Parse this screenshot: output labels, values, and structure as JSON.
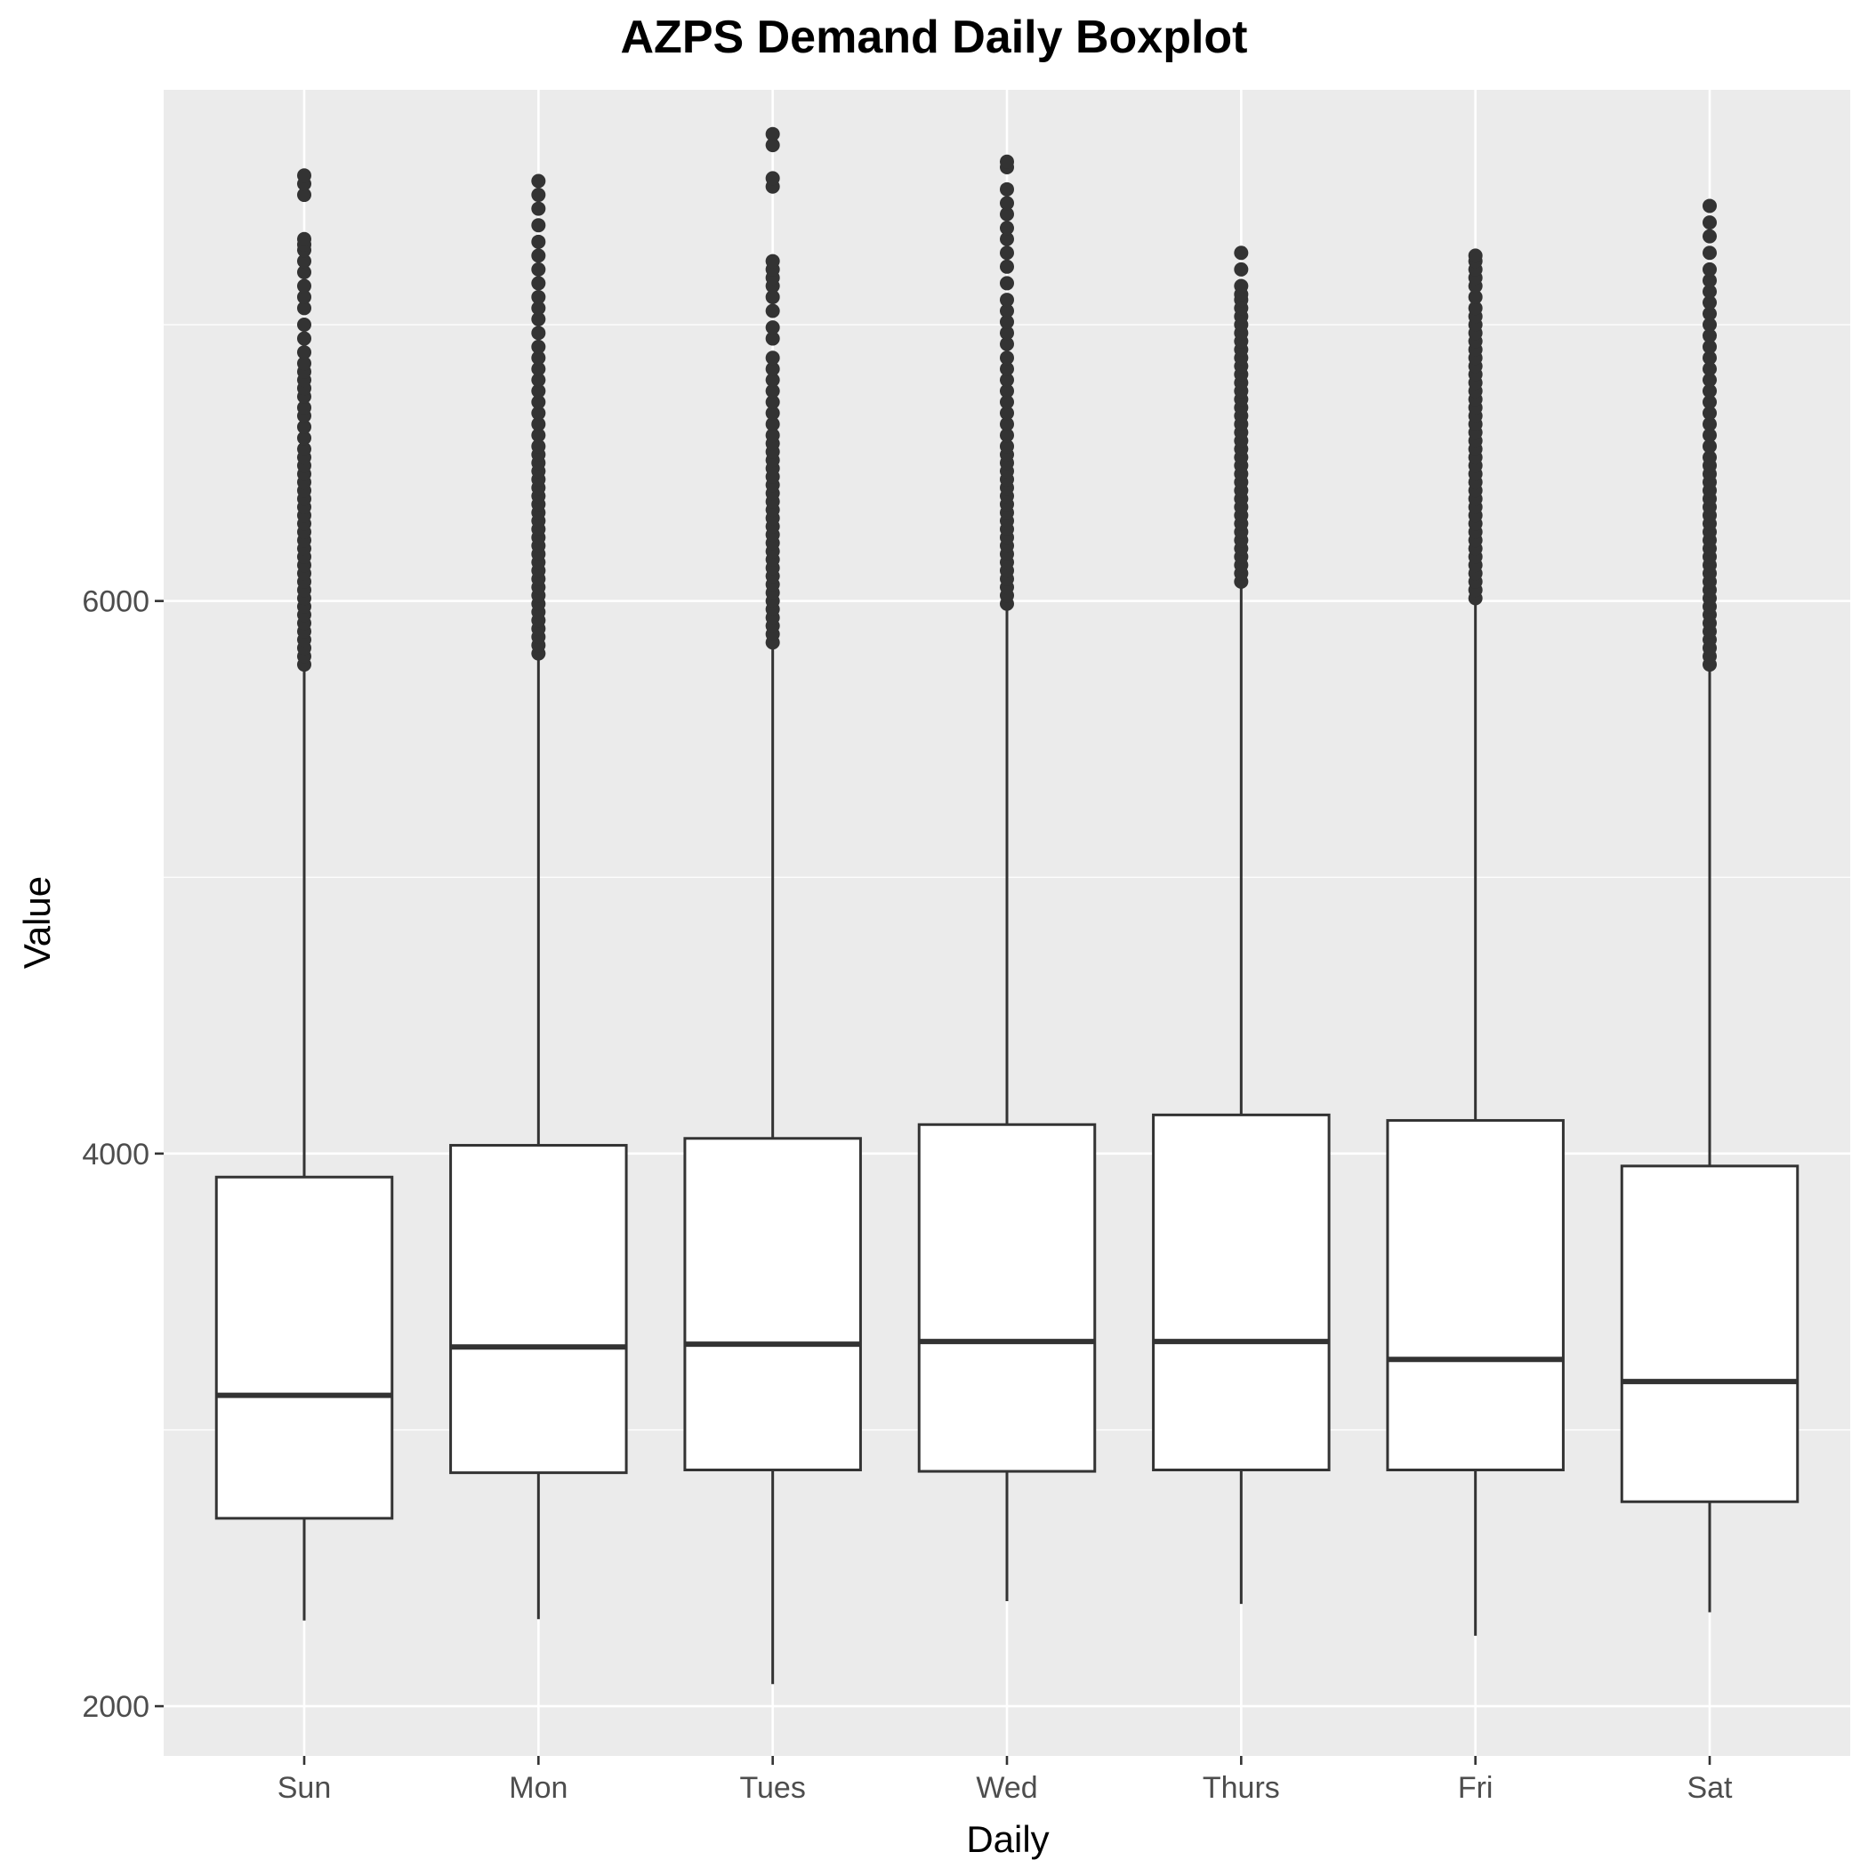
{
  "chart_data": {
    "type": "boxplot",
    "title": "AZPS  Demand Daily Boxplot",
    "xlabel": "Daily",
    "ylabel": "Value",
    "ylim": [
      1820,
      7850
    ],
    "y_ticks": [
      2000,
      4000,
      6000
    ],
    "grid": true,
    "colors": {
      "panel_background": "#ebebeb",
      "grid_major": "#ffffff",
      "box_fill": "#ffffff",
      "box_stroke": "#333333",
      "outlier": "#333333"
    },
    "categories": [
      "Sun",
      "Mon",
      "Tues",
      "Wed",
      "Thurs",
      "Fri",
      "Sat"
    ],
    "boxes": [
      {
        "category": "Sun",
        "whisker_low": 2310,
        "q1": 2680,
        "median": 3125,
        "q3": 3915,
        "whisker_high": 5760,
        "outliers": [
          5770,
          5800,
          5830,
          5860,
          5890,
          5920,
          5950,
          5980,
          6010,
          6040,
          6070,
          6100,
          6130,
          6160,
          6190,
          6220,
          6250,
          6280,
          6310,
          6340,
          6370,
          6400,
          6430,
          6460,
          6490,
          6520,
          6550,
          6590,
          6630,
          6670,
          6700,
          6740,
          6770,
          6800,
          6830,
          6860,
          6900,
          6950,
          7000,
          7060,
          7100,
          7140,
          7190,
          7230,
          7270,
          7290,
          7310,
          7470,
          7510,
          7540
        ]
      },
      {
        "category": "Mon",
        "whisker_low": 2315,
        "q1": 2845,
        "median": 3300,
        "q3": 4030,
        "whisker_high": 5800,
        "outliers": [
          5810,
          5840,
          5870,
          5900,
          5930,
          5960,
          5990,
          6020,
          6050,
          6080,
          6110,
          6140,
          6170,
          6200,
          6230,
          6260,
          6290,
          6320,
          6350,
          6380,
          6410,
          6440,
          6470,
          6500,
          6530,
          6560,
          6600,
          6640,
          6680,
          6720,
          6760,
          6800,
          6840,
          6880,
          6920,
          6970,
          7020,
          7060,
          7100,
          7150,
          7200,
          7250,
          7300,
          7360,
          7420,
          7470,
          7520
        ]
      },
      {
        "category": "Tues",
        "whisker_low": 2080,
        "q1": 2855,
        "median": 3310,
        "q3": 4055,
        "whisker_high": 5840,
        "outliers": [
          5850,
          5880,
          5910,
          5940,
          5970,
          6000,
          6030,
          6060,
          6090,
          6120,
          6150,
          6180,
          6210,
          6240,
          6270,
          6300,
          6330,
          6360,
          6390,
          6420,
          6450,
          6480,
          6510,
          6540,
          6570,
          6600,
          6640,
          6680,
          6720,
          6760,
          6800,
          6840,
          6880,
          6950,
          6990,
          7050,
          7100,
          7140,
          7170,
          7200,
          7230,
          7500,
          7530,
          7650,
          7690
        ]
      },
      {
        "category": "Wed",
        "whisker_low": 2380,
        "q1": 2850,
        "median": 3320,
        "q3": 4105,
        "whisker_high": 5980,
        "outliers": [
          5990,
          6020,
          6050,
          6080,
          6110,
          6140,
          6170,
          6200,
          6230,
          6260,
          6290,
          6320,
          6350,
          6380,
          6410,
          6440,
          6470,
          6500,
          6530,
          6560,
          6600,
          6640,
          6680,
          6720,
          6760,
          6800,
          6840,
          6880,
          6930,
          6970,
          7010,
          7050,
          7090,
          7150,
          7210,
          7260,
          7310,
          7350,
          7400,
          7440,
          7490,
          7570,
          7590
        ]
      },
      {
        "category": "Thurs",
        "whisker_low": 2370,
        "q1": 2855,
        "median": 3320,
        "q3": 4140,
        "whisker_high": 6060,
        "outliers": [
          6070,
          6100,
          6130,
          6160,
          6190,
          6220,
          6250,
          6280,
          6310,
          6340,
          6370,
          6400,
          6430,
          6460,
          6490,
          6520,
          6550,
          6580,
          6610,
          6640,
          6670,
          6700,
          6730,
          6760,
          6790,
          6820,
          6850,
          6880,
          6910,
          6940,
          6970,
          7000,
          7030,
          7060,
          7090,
          7110,
          7140,
          7200,
          7260
        ]
      },
      {
        "category": "Fri",
        "whisker_low": 2255,
        "q1": 2855,
        "median": 3255,
        "q3": 4120,
        "whisker_high": 6000,
        "outliers": [
          6010,
          6040,
          6070,
          6100,
          6130,
          6160,
          6190,
          6220,
          6250,
          6280,
          6310,
          6340,
          6370,
          6400,
          6430,
          6460,
          6490,
          6520,
          6550,
          6580,
          6610,
          6640,
          6670,
          6700,
          6730,
          6760,
          6790,
          6820,
          6850,
          6880,
          6910,
          6940,
          6970,
          7000,
          7030,
          7060,
          7100,
          7140,
          7170,
          7200,
          7230,
          7250
        ]
      },
      {
        "category": "Sat",
        "whisker_low": 2340,
        "q1": 2740,
        "median": 3175,
        "q3": 3955,
        "whisker_high": 5760,
        "outliers": [
          5770,
          5800,
          5830,
          5860,
          5890,
          5920,
          5950,
          5980,
          6010,
          6040,
          6070,
          6100,
          6130,
          6160,
          6190,
          6220,
          6250,
          6280,
          6310,
          6340,
          6370,
          6400,
          6430,
          6460,
          6490,
          6520,
          6560,
          6600,
          6640,
          6680,
          6720,
          6760,
          6800,
          6840,
          6880,
          6920,
          6960,
          7000,
          7040,
          7080,
          7120,
          7160,
          7200,
          7260,
          7320,
          7370,
          7430
        ]
      }
    ]
  }
}
